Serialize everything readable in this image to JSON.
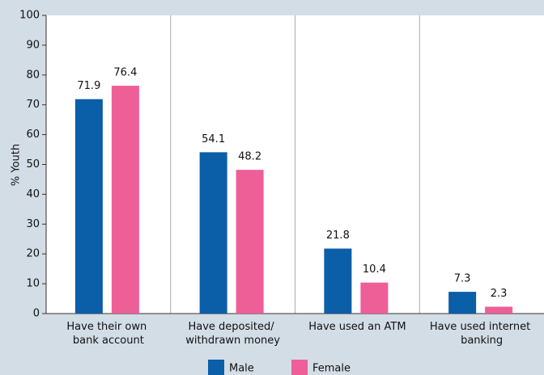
{
  "chart_data": {
    "type": "bar",
    "categories": [
      "Have their own bank account",
      "Have deposited/ withdrawn money",
      "Have used an ATM",
      "Have used internet banking"
    ],
    "series": [
      {
        "name": "Male",
        "color": "#0b5ea8",
        "values": [
          71.9,
          54.1,
          21.8,
          7.3
        ]
      },
      {
        "name": "Female",
        "color": "#ee5f97",
        "values": [
          76.4,
          48.2,
          10.4,
          2.3
        ]
      }
    ],
    "y_label": "% Youth",
    "ylim": [
      0,
      100
    ],
    "yticks": [
      0,
      10,
      20,
      30,
      40,
      50,
      60,
      70,
      80,
      90,
      100
    ]
  }
}
